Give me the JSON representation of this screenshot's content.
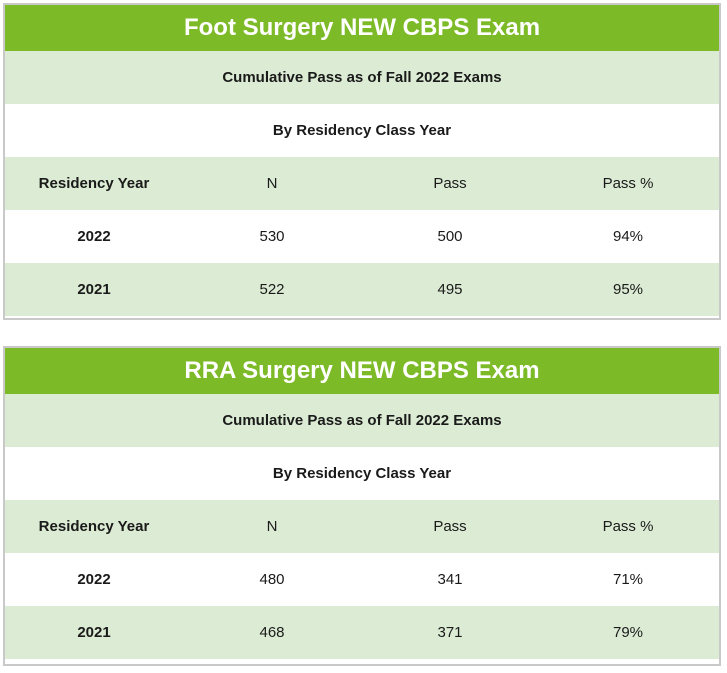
{
  "tables": [
    {
      "title": "Foot Surgery NEW CBPS Exam",
      "subtitle": "Cumulative Pass as of Fall 2022 Exams",
      "group_label": "By Residency Class Year",
      "columns": [
        "Residency Year",
        "N",
        "Pass",
        "Pass %"
      ],
      "rows": [
        {
          "year": "2022",
          "n": "530",
          "pass": "500",
          "pct": "94%"
        },
        {
          "year": "2021",
          "n": "522",
          "pass": "495",
          "pct": "95%"
        }
      ]
    },
    {
      "title": "RRA Surgery NEW CBPS Exam",
      "subtitle": "Cumulative Pass as of Fall 2022 Exams",
      "group_label": "By Residency Class Year",
      "columns": [
        "Residency Year",
        "N",
        "Pass",
        "Pass %"
      ],
      "rows": [
        {
          "year": "2022",
          "n": "480",
          "pass": "341",
          "pct": "71%"
        },
        {
          "year": "2021",
          "n": "468",
          "pass": "371",
          "pct": "79%"
        }
      ]
    }
  ],
  "colors": {
    "title_green": "#7dba27",
    "row_light_green": "#dcecd4",
    "border_gray": "#c9c9c9"
  }
}
